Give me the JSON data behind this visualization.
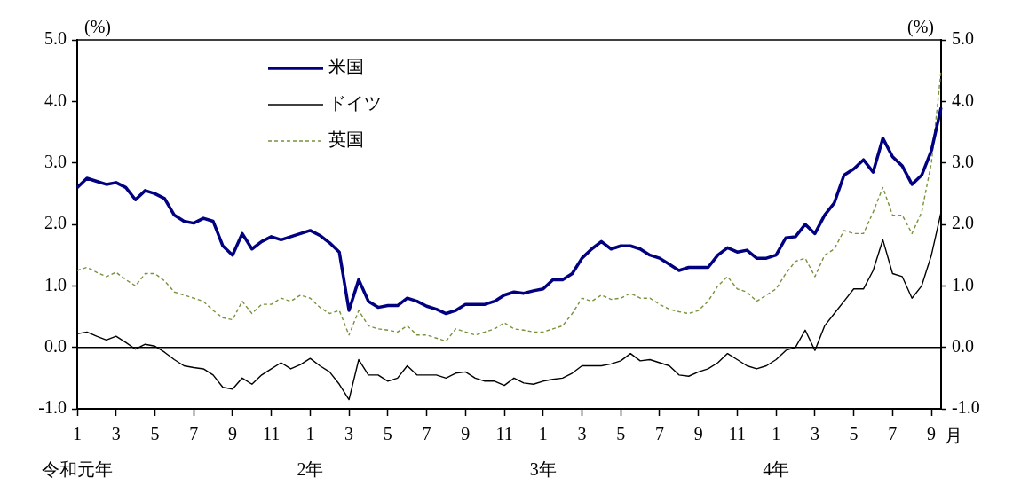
{
  "chart_data": {
    "type": "line",
    "ylabel": "(%)",
    "y2label": "(%)",
    "xlabel": "月",
    "categories": [
      "1\n令和元年",
      null,
      null,
      null,
      "3",
      null,
      null,
      null,
      "5",
      null,
      null,
      null,
      "7",
      null,
      null,
      null,
      "9",
      null,
      null,
      null,
      "11",
      null,
      null,
      null,
      "1\n2年",
      null,
      null,
      null,
      "3",
      null,
      null,
      null,
      "5",
      null,
      null,
      null,
      "7",
      null,
      null,
      null,
      "9",
      null,
      null,
      null,
      "11",
      null,
      null,
      null,
      "1\n3年",
      null,
      null,
      null,
      "3",
      null,
      null,
      null,
      "5",
      null,
      null,
      null,
      "7",
      null,
      null,
      null,
      "9",
      null,
      null,
      null,
      "11",
      null,
      null,
      null,
      "1\n4年",
      null,
      null,
      null,
      "3",
      null,
      null,
      null,
      "5",
      null,
      null,
      null,
      "7",
      null,
      null,
      null,
      "9",
      null
    ],
    "ylim": [
      -1,
      5
    ],
    "yticks": [
      {
        "value": -1,
        "label": "-1.0"
      },
      {
        "value": 0,
        "label": "0.0"
      },
      {
        "value": 1,
        "label": "1.0"
      },
      {
        "value": 2,
        "label": "2.0"
      },
      {
        "value": 3,
        "label": "3.0"
      },
      {
        "value": 4,
        "label": "4.0"
      },
      {
        "value": 5,
        "label": "5.0"
      }
    ],
    "y2lim": [
      -1,
      5
    ],
    "y2ticks": [
      {
        "value": -1,
        "label": "-1.0"
      },
      {
        "value": 0,
        "label": "0.0"
      },
      {
        "value": 1,
        "label": "1.0"
      },
      {
        "value": 2,
        "label": "2.0"
      },
      {
        "value": 3,
        "label": "3.0"
      },
      {
        "value": 4,
        "label": "4.0"
      },
      {
        "value": 5,
        "label": "5.0"
      }
    ],
    "grid": false,
    "legend": "top left",
    "marker": "none",
    "ref_lines": [
      {
        "axis": "y",
        "value": 0,
        "color": "#000000"
      }
    ],
    "series": [
      {
        "name": "米国",
        "color": "#000080",
        "line_style": "solid",
        "values": [
          2.6,
          2.75,
          2.7,
          2.65,
          2.68,
          2.6,
          2.4,
          2.55,
          2.5,
          2.42,
          2.15,
          2.05,
          2.02,
          2.1,
          2.05,
          1.65,
          1.5,
          1.85,
          1.6,
          1.72,
          1.8,
          1.75,
          1.8,
          1.85,
          1.9,
          1.82,
          1.7,
          1.55,
          0.6,
          1.1,
          0.75,
          0.65,
          0.68,
          0.68,
          0.8,
          0.75,
          0.67,
          0.62,
          0.55,
          0.6,
          0.7,
          0.7,
          0.7,
          0.75,
          0.85,
          0.9,
          0.88,
          0.92,
          0.95,
          1.1,
          1.1,
          1.2,
          1.45,
          1.6,
          1.72,
          1.6,
          1.65,
          1.65,
          1.6,
          1.5,
          1.45,
          1.35,
          1.25,
          1.3,
          1.3,
          1.3,
          1.5,
          1.62,
          1.55,
          1.58,
          1.45,
          1.45,
          1.5,
          1.78,
          1.8,
          2.0,
          1.85,
          2.15,
          2.35,
          2.8,
          2.9,
          3.05,
          2.85,
          3.4,
          3.1,
          2.95,
          2.65,
          2.8,
          3.2,
          3.9
        ]
      },
      {
        "name": "ドイツ",
        "color": "#000000",
        "line_style": "solid",
        "values": [
          0.22,
          0.25,
          0.18,
          0.12,
          0.18,
          0.08,
          -0.03,
          0.05,
          0.02,
          -0.08,
          -0.2,
          -0.3,
          -0.33,
          -0.35,
          -0.45,
          -0.65,
          -0.68,
          -0.5,
          -0.6,
          -0.45,
          -0.35,
          -0.25,
          -0.35,
          -0.28,
          -0.18,
          -0.3,
          -0.4,
          -0.6,
          -0.85,
          -0.2,
          -0.45,
          -0.45,
          -0.55,
          -0.5,
          -0.3,
          -0.45,
          -0.45,
          -0.45,
          -0.5,
          -0.42,
          -0.4,
          -0.5,
          -0.55,
          -0.55,
          -0.62,
          -0.5,
          -0.58,
          -0.6,
          -0.55,
          -0.52,
          -0.5,
          -0.42,
          -0.3,
          -0.3,
          -0.3,
          -0.27,
          -0.22,
          -0.1,
          -0.22,
          -0.2,
          -0.25,
          -0.3,
          -0.45,
          -0.47,
          -0.4,
          -0.35,
          -0.25,
          -0.1,
          -0.2,
          -0.3,
          -0.35,
          -0.3,
          -0.2,
          -0.05,
          0.0,
          0.28,
          -0.05,
          0.35,
          0.55,
          0.75,
          0.95,
          0.95,
          1.25,
          1.75,
          1.2,
          1.15,
          0.8,
          1.0,
          1.5,
          2.2
        ]
      },
      {
        "name": "英国",
        "color": "#77933c",
        "line_style": "dashed",
        "values": [
          1.25,
          1.3,
          1.22,
          1.15,
          1.22,
          1.1,
          1.0,
          1.2,
          1.2,
          1.08,
          0.9,
          0.85,
          0.8,
          0.75,
          0.6,
          0.48,
          0.45,
          0.75,
          0.55,
          0.7,
          0.7,
          0.8,
          0.75,
          0.85,
          0.8,
          0.65,
          0.55,
          0.6,
          0.2,
          0.6,
          0.35,
          0.3,
          0.28,
          0.25,
          0.35,
          0.2,
          0.2,
          0.15,
          0.1,
          0.3,
          0.25,
          0.2,
          0.25,
          0.3,
          0.4,
          0.3,
          0.28,
          0.25,
          0.25,
          0.3,
          0.35,
          0.55,
          0.8,
          0.75,
          0.85,
          0.78,
          0.8,
          0.88,
          0.8,
          0.8,
          0.7,
          0.62,
          0.58,
          0.55,
          0.6,
          0.75,
          1.0,
          1.15,
          0.95,
          0.9,
          0.75,
          0.85,
          0.95,
          1.2,
          1.4,
          1.45,
          1.15,
          1.5,
          1.6,
          1.9,
          1.85,
          1.85,
          2.2,
          2.6,
          2.15,
          2.15,
          1.85,
          2.2,
          3.0,
          4.5
        ]
      }
    ]
  }
}
